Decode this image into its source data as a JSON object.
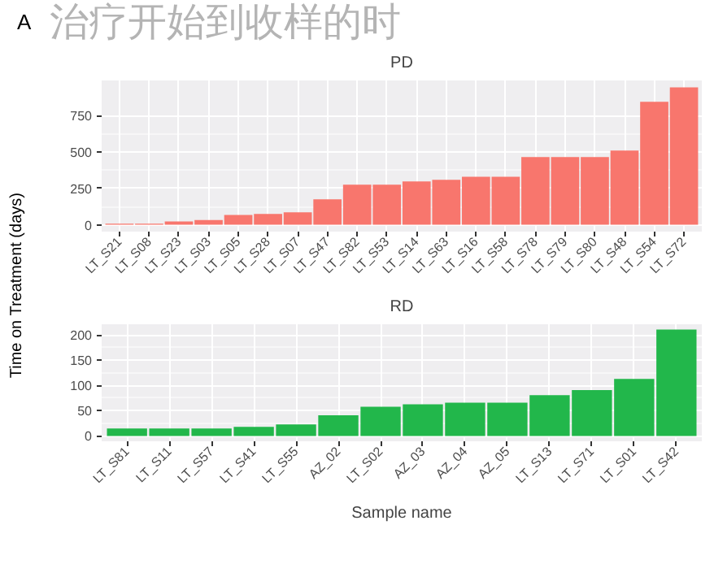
{
  "chart_data": [
    {
      "type": "bar",
      "title": "PD",
      "ylabel": "Time on Treatment (days)",
      "annotations": [
        "A",
        "治疗开始到收样的时"
      ],
      "categories": [
        "LT_S21",
        "LT_S08",
        "LT_S23",
        "LT_S03",
        "LT_S05",
        "LT_S28",
        "LT_S07",
        "LT_S47",
        "LT_S82",
        "LT_S53",
        "LT_S14",
        "LT_S63",
        "LT_S16",
        "LT_S58",
        "LT_S78",
        "LT_S79",
        "LT_S80",
        "LT_S48",
        "LT_S54",
        "LT_S72"
      ],
      "values": [
        7,
        7,
        22,
        33,
        67,
        74,
        85,
        175,
        275,
        275,
        297,
        308,
        330,
        330,
        464,
        464,
        464,
        509,
        843,
        943
      ],
      "color": "#f8766d",
      "ylim": [
        -47,
        990
      ],
      "yticks": [
        0,
        250,
        500,
        750
      ],
      "grid": true
    },
    {
      "type": "bar",
      "title": "RD",
      "xlabel": "Sample name",
      "categories": [
        "LT_S81",
        "LT_S11",
        "LT_S57",
        "LT_S41",
        "LT_S55",
        "AZ_02",
        "LT_S02",
        "AZ_03",
        "AZ_04",
        "AZ_05",
        "LT_S13",
        "LT_S71",
        "LT_S01",
        "LT_S42"
      ],
      "values": [
        15,
        15,
        15,
        18,
        23,
        41,
        58,
        63,
        66,
        66,
        81,
        91,
        113,
        211
      ],
      "color": "#22b74b",
      "ylim": [
        -10.5,
        221.5
      ],
      "yticks": [
        0,
        50,
        100,
        150,
        200
      ],
      "grid": true
    }
  ]
}
